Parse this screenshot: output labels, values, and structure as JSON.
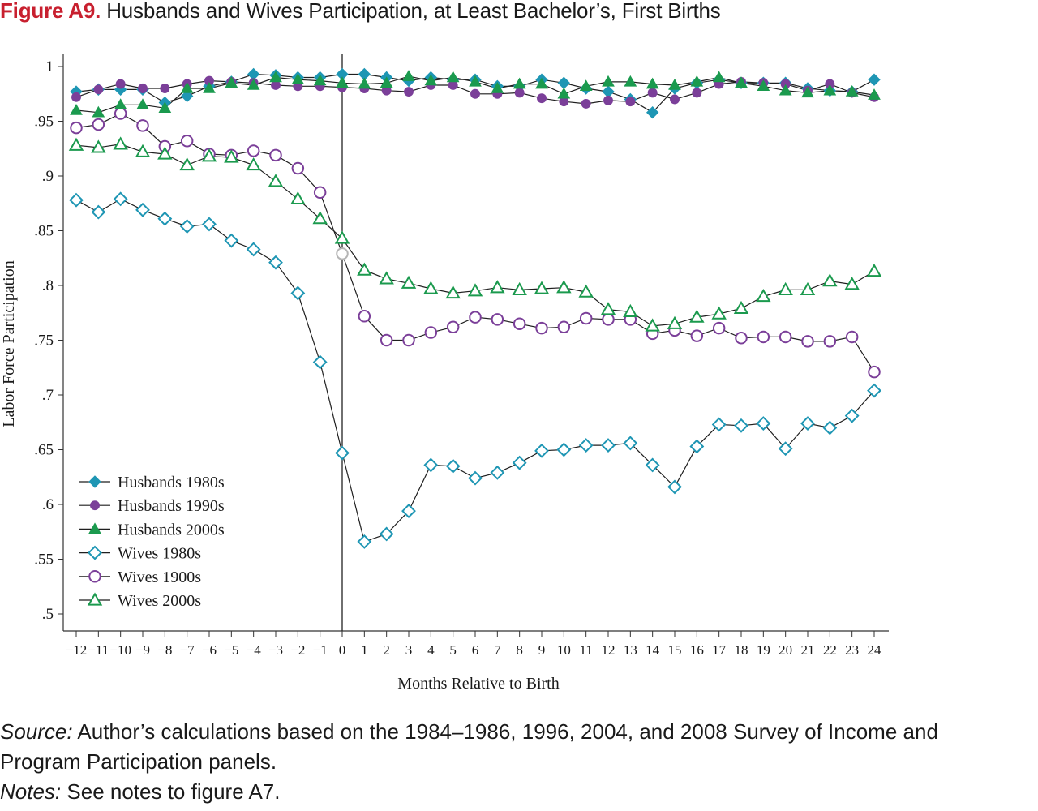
{
  "figure": {
    "label": "Figure A9.",
    "title": "Husbands and Wives Participation, at Least Bachelor’s, First Births"
  },
  "footnotes": {
    "source_label": "Source:",
    "source_text": "Author’s calculations based on the 1984–1986, 1996, 2004, and 2008 Survey of Income and",
    "source_text_2": "Program Participation panels.",
    "notes_label": "Notes:",
    "notes_text": "See notes to figure A7."
  },
  "chart_data": {
    "type": "line",
    "xlabel": "Months Relative to Birth",
    "ylabel": "Labor Force Participation",
    "xlim": [
      -12,
      24
    ],
    "ylim": [
      0.5,
      1.0
    ],
    "x": [
      -12,
      -11,
      -10,
      -9,
      -8,
      -7,
      -6,
      -5,
      -4,
      -3,
      -2,
      -1,
      0,
      1,
      2,
      3,
      4,
      5,
      6,
      7,
      8,
      9,
      10,
      11,
      12,
      13,
      14,
      15,
      16,
      17,
      18,
      19,
      20,
      21,
      22,
      23,
      24
    ],
    "x_tick_labels": [
      "−12",
      "−11",
      "−10",
      "−9",
      "−8",
      "−7",
      "−6",
      "−5",
      "−4",
      "−3",
      "−2",
      "−1",
      "0",
      "1",
      "2",
      "3",
      "4",
      "5",
      "6",
      "7",
      "8",
      "9",
      "10",
      "11",
      "12",
      "13",
      "14",
      "15",
      "16",
      "17",
      "18",
      "19",
      "20",
      "21",
      "22",
      "23",
      "24"
    ],
    "y_ticks": [
      0.5,
      0.55,
      0.6,
      0.65,
      0.7,
      0.75,
      0.8,
      0.85,
      0.9,
      0.95,
      1
    ],
    "y_tick_labels": [
      ".5",
      ".55",
      ".6",
      ".65",
      ".7",
      ".75",
      ".8",
      ".85",
      ".9",
      ".95",
      "1"
    ],
    "reference_line_x": 0,
    "grid": false,
    "legend_position": "bottom-left",
    "series": [
      {
        "name": "Husbands 1980s",
        "color": "#1e96b4",
        "marker": "diamond",
        "filled": true,
        "values": [
          0.977,
          0.979,
          0.979,
          0.979,
          0.967,
          0.973,
          0.982,
          0.986,
          0.993,
          0.992,
          0.99,
          0.99,
          0.993,
          0.993,
          0.99,
          0.987,
          0.99,
          0.988,
          0.988,
          0.982,
          0.982,
          0.988,
          0.985,
          0.98,
          0.977,
          0.97,
          0.958,
          0.98,
          0.985,
          0.988,
          0.985,
          0.985,
          0.985,
          0.98,
          0.978,
          0.977,
          0.988
        ]
      },
      {
        "name": "Husbands 1990s",
        "color": "#7b3f99",
        "marker": "circle",
        "filled": true,
        "values": [
          0.972,
          0.979,
          0.984,
          0.98,
          0.98,
          0.984,
          0.987,
          0.986,
          0.985,
          0.983,
          0.982,
          0.982,
          0.981,
          0.98,
          0.978,
          0.977,
          0.983,
          0.983,
          0.975,
          0.975,
          0.976,
          0.971,
          0.968,
          0.966,
          0.969,
          0.968,
          0.976,
          0.97,
          0.976,
          0.984,
          0.986,
          0.985,
          0.984,
          0.978,
          0.984,
          0.976,
          0.972
        ]
      },
      {
        "name": "Husbands 2000s",
        "color": "#1b9a4e",
        "marker": "triangle",
        "filled": true,
        "values": [
          0.96,
          0.958,
          0.965,
          0.965,
          0.962,
          0.98,
          0.98,
          0.985,
          0.983,
          0.99,
          0.988,
          0.987,
          0.985,
          0.984,
          0.985,
          0.991,
          0.987,
          0.99,
          0.986,
          0.98,
          0.984,
          0.984,
          0.975,
          0.982,
          0.986,
          0.986,
          0.984,
          0.983,
          0.986,
          0.99,
          0.985,
          0.982,
          0.978,
          0.976,
          0.978,
          0.977,
          0.974
        ]
      },
      {
        "name": "Wives 1980s",
        "color": "#1e96b4",
        "marker": "diamond",
        "filled": false,
        "values": [
          0.878,
          0.867,
          0.879,
          0.869,
          0.861,
          0.854,
          0.856,
          0.841,
          0.833,
          0.821,
          0.793,
          0.73,
          0.647,
          0.566,
          0.573,
          0.594,
          0.636,
          0.635,
          0.624,
          0.629,
          0.638,
          0.649,
          0.65,
          0.654,
          0.654,
          0.656,
          0.636,
          0.616,
          0.653,
          0.673,
          0.672,
          0.674,
          0.651,
          0.674,
          0.67,
          0.681,
          0.704
        ]
      },
      {
        "name": "Wives 1900s",
        "color": "#7b3f99",
        "marker": "circle",
        "filled": false,
        "values": [
          0.944,
          0.947,
          0.957,
          0.946,
          0.927,
          0.932,
          0.92,
          0.919,
          0.923,
          0.919,
          0.907,
          0.885,
          0.829,
          0.772,
          0.75,
          0.75,
          0.757,
          0.762,
          0.771,
          0.769,
          0.765,
          0.761,
          0.762,
          0.77,
          0.769,
          0.769,
          0.756,
          0.759,
          0.754,
          0.761,
          0.752,
          0.753,
          0.753,
          0.749,
          0.749,
          0.753,
          0.721
        ]
      },
      {
        "name": "Wives 2000s",
        "color": "#1b9a4e",
        "marker": "triangle",
        "filled": false,
        "values": [
          0.928,
          0.926,
          0.929,
          0.922,
          0.92,
          0.91,
          0.918,
          0.917,
          0.91,
          0.895,
          0.879,
          0.861,
          0.843,
          0.814,
          0.806,
          0.802,
          0.797,
          0.793,
          0.795,
          0.798,
          0.796,
          0.797,
          0.798,
          0.794,
          0.778,
          0.776,
          0.763,
          0.765,
          0.771,
          0.774,
          0.779,
          0.79,
          0.796,
          0.796,
          0.804,
          0.801,
          0.813
        ]
      }
    ]
  }
}
